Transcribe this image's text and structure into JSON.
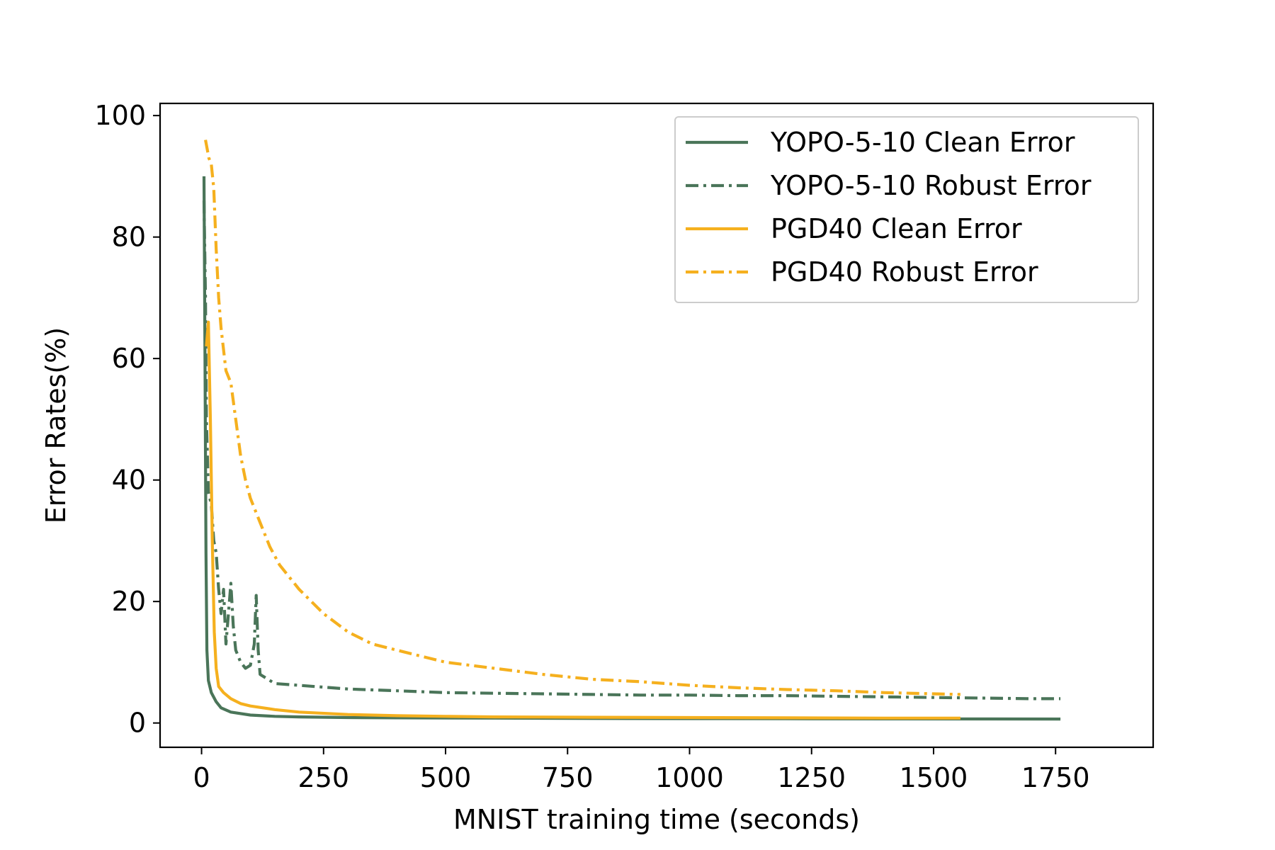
{
  "chart_data": {
    "type": "line",
    "title": "",
    "xlabel": "MNIST training time (seconds)",
    "ylabel": "Error Rates(%)",
    "xlim": [
      -85,
      1950
    ],
    "ylim": [
      -4,
      102
    ],
    "xticks": [
      0,
      250,
      500,
      750,
      1000,
      1250,
      1500,
      1750
    ],
    "yticks": [
      0,
      20,
      40,
      60,
      80,
      100
    ],
    "grid": false,
    "legend_position": "top-right",
    "colors": {
      "yopo": "#4a7559",
      "pgd": "#f5b01e"
    },
    "series": [
      {
        "name": "YOPO-5-10 Clean Error",
        "color": "#4a7559",
        "style": "solid",
        "points": [
          [
            5,
            90
          ],
          [
            7,
            60
          ],
          [
            9,
            28
          ],
          [
            11,
            12
          ],
          [
            14,
            7
          ],
          [
            20,
            5
          ],
          [
            30,
            3.5
          ],
          [
            40,
            2.5
          ],
          [
            60,
            1.8
          ],
          [
            100,
            1.3
          ],
          [
            150,
            1.1
          ],
          [
            200,
            1.0
          ],
          [
            300,
            0.9
          ],
          [
            400,
            0.85
          ],
          [
            600,
            0.8
          ],
          [
            800,
            0.75
          ],
          [
            1000,
            0.72
          ],
          [
            1200,
            0.7
          ],
          [
            1400,
            0.68
          ],
          [
            1600,
            0.66
          ],
          [
            1760,
            0.65
          ]
        ]
      },
      {
        "name": "YOPO-5-10 Robust Error",
        "color": "#4a7559",
        "style": "dashdot",
        "points": [
          [
            5,
            86
          ],
          [
            8,
            70
          ],
          [
            10,
            50
          ],
          [
            14,
            38
          ],
          [
            20,
            36
          ],
          [
            25,
            30
          ],
          [
            30,
            28
          ],
          [
            35,
            22
          ],
          [
            40,
            18
          ],
          [
            45,
            22
          ],
          [
            50,
            13
          ],
          [
            55,
            18
          ],
          [
            60,
            23
          ],
          [
            65,
            16
          ],
          [
            70,
            12
          ],
          [
            80,
            10
          ],
          [
            90,
            9
          ],
          [
            100,
            9.5
          ],
          [
            108,
            13
          ],
          [
            112,
            21
          ],
          [
            116,
            12
          ],
          [
            120,
            8
          ],
          [
            150,
            6.5
          ],
          [
            200,
            6.2
          ],
          [
            300,
            5.6
          ],
          [
            400,
            5.3
          ],
          [
            500,
            5.0
          ],
          [
            600,
            4.9
          ],
          [
            700,
            4.8
          ],
          [
            800,
            4.7
          ],
          [
            900,
            4.6
          ],
          [
            1000,
            4.6
          ],
          [
            1100,
            4.5
          ],
          [
            1200,
            4.5
          ],
          [
            1300,
            4.4
          ],
          [
            1400,
            4.3
          ],
          [
            1500,
            4.2
          ],
          [
            1600,
            4.1
          ],
          [
            1700,
            4.0
          ],
          [
            1760,
            4.0
          ]
        ]
      },
      {
        "name": "PGD40 Clean Error",
        "color": "#f5b01e",
        "style": "solid",
        "points": [
          [
            10,
            62
          ],
          [
            14,
            66
          ],
          [
            18,
            50
          ],
          [
            22,
            30
          ],
          [
            26,
            15
          ],
          [
            30,
            9
          ],
          [
            35,
            6
          ],
          [
            45,
            5
          ],
          [
            60,
            4
          ],
          [
            80,
            3.2
          ],
          [
            100,
            2.8
          ],
          [
            150,
            2.2
          ],
          [
            200,
            1.8
          ],
          [
            300,
            1.4
          ],
          [
            400,
            1.2
          ],
          [
            500,
            1.1
          ],
          [
            600,
            1.0
          ],
          [
            800,
            0.95
          ],
          [
            1000,
            0.9
          ],
          [
            1200,
            0.85
          ],
          [
            1400,
            0.8
          ],
          [
            1555,
            0.8
          ]
        ]
      },
      {
        "name": "PGD40 Robust Error",
        "color": "#f5b01e",
        "style": "dashdot",
        "points": [
          [
            8,
            96
          ],
          [
            15,
            93
          ],
          [
            20,
            92
          ],
          [
            25,
            88
          ],
          [
            30,
            78
          ],
          [
            35,
            70
          ],
          [
            40,
            65
          ],
          [
            50,
            58
          ],
          [
            60,
            56
          ],
          [
            70,
            50
          ],
          [
            80,
            44
          ],
          [
            90,
            40
          ],
          [
            100,
            37
          ],
          [
            120,
            33
          ],
          [
            140,
            29
          ],
          [
            160,
            26
          ],
          [
            180,
            24
          ],
          [
            200,
            22
          ],
          [
            250,
            18
          ],
          [
            300,
            15
          ],
          [
            350,
            13
          ],
          [
            400,
            12
          ],
          [
            450,
            11
          ],
          [
            500,
            10
          ],
          [
            550,
            9.5
          ],
          [
            600,
            9
          ],
          [
            700,
            8
          ],
          [
            800,
            7.2
          ],
          [
            900,
            6.8
          ],
          [
            1000,
            6.2
          ],
          [
            1100,
            5.8
          ],
          [
            1200,
            5.5
          ],
          [
            1300,
            5.3
          ],
          [
            1400,
            5.0
          ],
          [
            1500,
            4.8
          ],
          [
            1555,
            4.7
          ]
        ]
      }
    ]
  }
}
